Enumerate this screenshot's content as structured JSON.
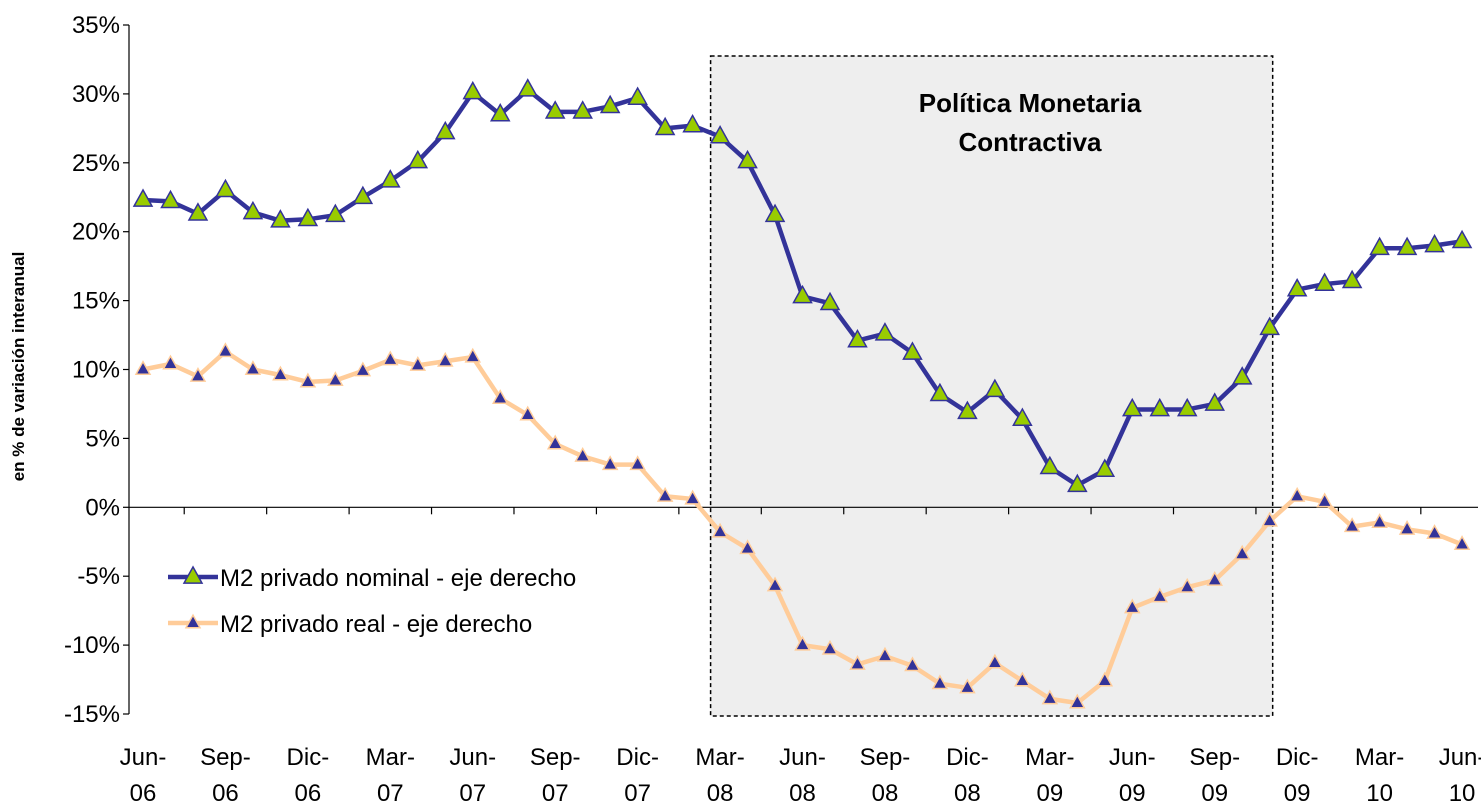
{
  "chart_data": {
    "type": "line",
    "title": "",
    "xlabel": "",
    "ylabel": "en % de variación interanual",
    "ylim": [
      -15,
      35
    ],
    "yticks": [
      "35%",
      "30%",
      "25%",
      "20%",
      "15%",
      "10%",
      "5%",
      "0%",
      "-5%",
      "-10%",
      "-15%"
    ],
    "ytick_values": [
      35,
      30,
      25,
      20,
      15,
      10,
      5,
      0,
      -5,
      -10,
      -15
    ],
    "xtick_labels": [
      {
        "line1": "Jun-",
        "line2": "06"
      },
      {
        "line1": "Sep-",
        "line2": "06"
      },
      {
        "line1": "Dic-",
        "line2": "06"
      },
      {
        "line1": "Mar-",
        "line2": "07"
      },
      {
        "line1": "Jun-",
        "line2": "07"
      },
      {
        "line1": "Sep-",
        "line2": "07"
      },
      {
        "line1": "Dic-",
        "line2": "07"
      },
      {
        "line1": "Mar-",
        "line2": "08"
      },
      {
        "line1": "Jun-",
        "line2": "08"
      },
      {
        "line1": "Sep-",
        "line2": "08"
      },
      {
        "line1": "Dic-",
        "line2": "08"
      },
      {
        "line1": "Mar-",
        "line2": "09"
      },
      {
        "line1": "Jun-",
        "line2": "09"
      },
      {
        "line1": "Sep-",
        "line2": "09"
      },
      {
        "line1": "Dic-",
        "line2": "09"
      },
      {
        "line1": "Mar-",
        "line2": "10"
      },
      {
        "line1": "Jun-",
        "line2": "10"
      }
    ],
    "shaded_region": {
      "start_month": "Feb-08",
      "end_month": "Nov-09"
    },
    "annotation": {
      "line1": "Política Monetaria",
      "line2": "Contractiva"
    },
    "legend_position": "lower-left",
    "grid": false,
    "series": [
      {
        "name": "M2 privado nominal - eje derecho",
        "line_color": "#333399",
        "marker_color": "#99CC00",
        "values": [
          22.3,
          22.2,
          21.3,
          23.0,
          21.4,
          20.8,
          20.9,
          21.2,
          22.5,
          23.7,
          25.1,
          27.2,
          30.1,
          28.5,
          30.3,
          28.7,
          28.7,
          29.1,
          29.7,
          27.5,
          27.7,
          26.9,
          25.1,
          21.2,
          15.3,
          14.8,
          12.1,
          12.6,
          11.2,
          8.2,
          6.9,
          8.5,
          6.4,
          2.9,
          1.6,
          2.7,
          7.1,
          7.1,
          7.1,
          7.5,
          9.4,
          13.0,
          15.8,
          16.2,
          16.4,
          18.8,
          18.8,
          19.0,
          19.3
        ]
      },
      {
        "name": "M2 privado real - eje derecho",
        "line_color": "#FFCC99",
        "marker_color": "#333399",
        "values": [
          10.0,
          10.4,
          9.5,
          11.3,
          10.0,
          9.6,
          9.1,
          9.2,
          9.9,
          10.7,
          10.3,
          10.6,
          10.9,
          7.9,
          6.7,
          4.6,
          3.7,
          3.1,
          3.1,
          0.8,
          0.6,
          -1.8,
          -3.0,
          -5.7,
          -10.0,
          -10.3,
          -11.4,
          -10.8,
          -11.5,
          -12.8,
          -13.1,
          -11.3,
          -12.6,
          -13.9,
          -14.2,
          -12.6,
          -7.3,
          -6.5,
          -5.8,
          -5.3,
          -3.4,
          -1.0,
          0.8,
          0.4,
          -1.4,
          -1.1,
          -1.6,
          -1.9,
          -2.7
        ]
      }
    ]
  }
}
